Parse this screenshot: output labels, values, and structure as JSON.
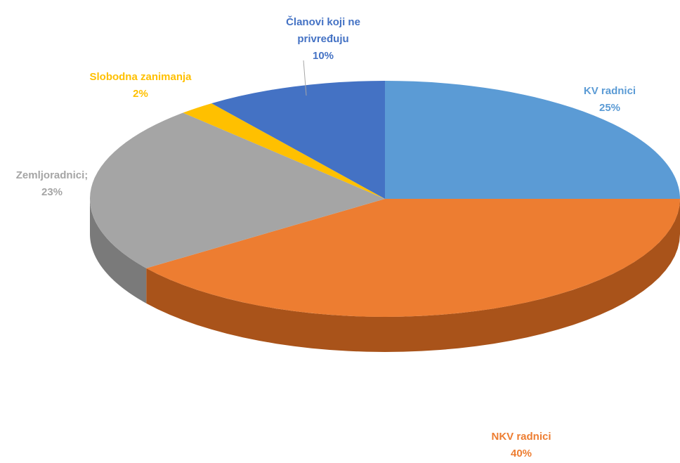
{
  "chart_data": {
    "type": "pie",
    "style": "3d",
    "title": "",
    "slices": [
      {
        "label": "KV radnici",
        "value": 25,
        "value_label": "25%",
        "color": "#5B9BD5",
        "side_color": "#3F6F9E"
      },
      {
        "label": "NKV radnici",
        "value": 40,
        "value_label": "40%",
        "color": "#ED7D31",
        "side_color": "#A9531A"
      },
      {
        "label": "Zemljoradnici;",
        "value": 23,
        "value_label": "23%",
        "color": "#A5A5A5",
        "side_color": "#7A7A7A"
      },
      {
        "label": "Slobodna zanimanja",
        "value": 2,
        "value_label": "2%",
        "color": "#FFC000",
        "side_color": "#B88A00"
      },
      {
        "label": "Članovi koji ne privređuju",
        "label_lines": [
          "Članovi koji ne",
          "privređuju"
        ],
        "value": 10,
        "value_label": "10%",
        "color": "#4472C4",
        "side_color": "#2E4F8A"
      }
    ]
  }
}
